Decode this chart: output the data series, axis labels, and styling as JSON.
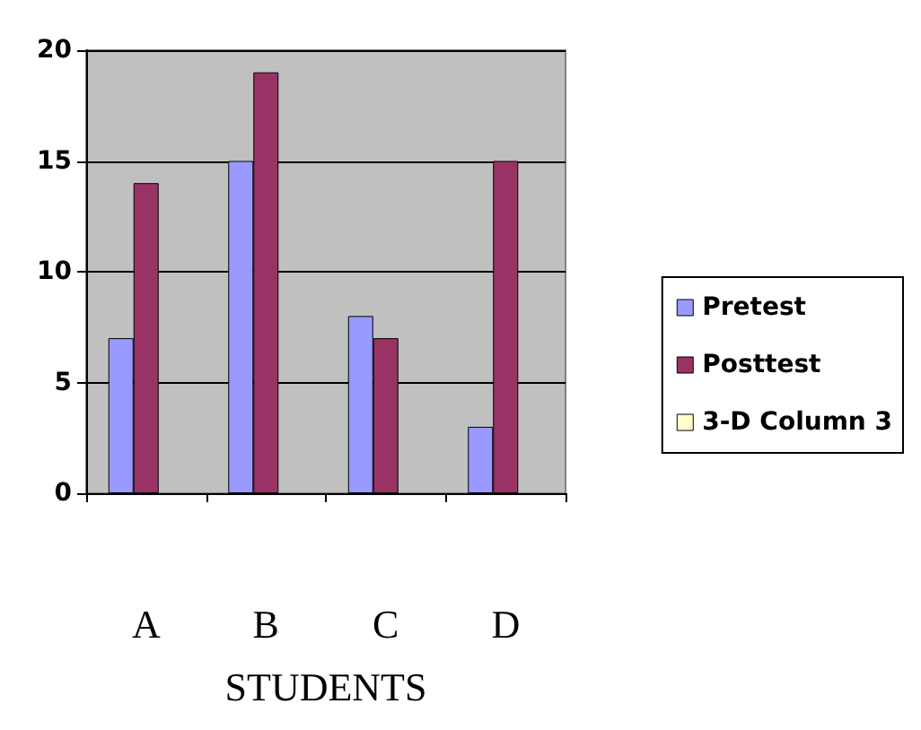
{
  "chart_data": {
    "type": "bar",
    "xlabel": "STUDENTS",
    "categories": [
      "A",
      "B",
      "C",
      "D"
    ],
    "series": [
      {
        "name": "Pretest",
        "color": "#9999ff",
        "values": [
          7,
          15,
          8,
          3
        ]
      },
      {
        "name": "Posttest",
        "color": "#993366",
        "values": [
          14,
          19,
          7,
          15
        ]
      },
      {
        "name": "3-D Column 3",
        "color": "#ffffcc",
        "values": [
          null,
          null,
          null,
          null
        ]
      }
    ],
    "ylim": [
      0,
      20
    ],
    "yticks": [
      0,
      5,
      10,
      15,
      20
    ],
    "grid": "y",
    "legend": "right"
  }
}
